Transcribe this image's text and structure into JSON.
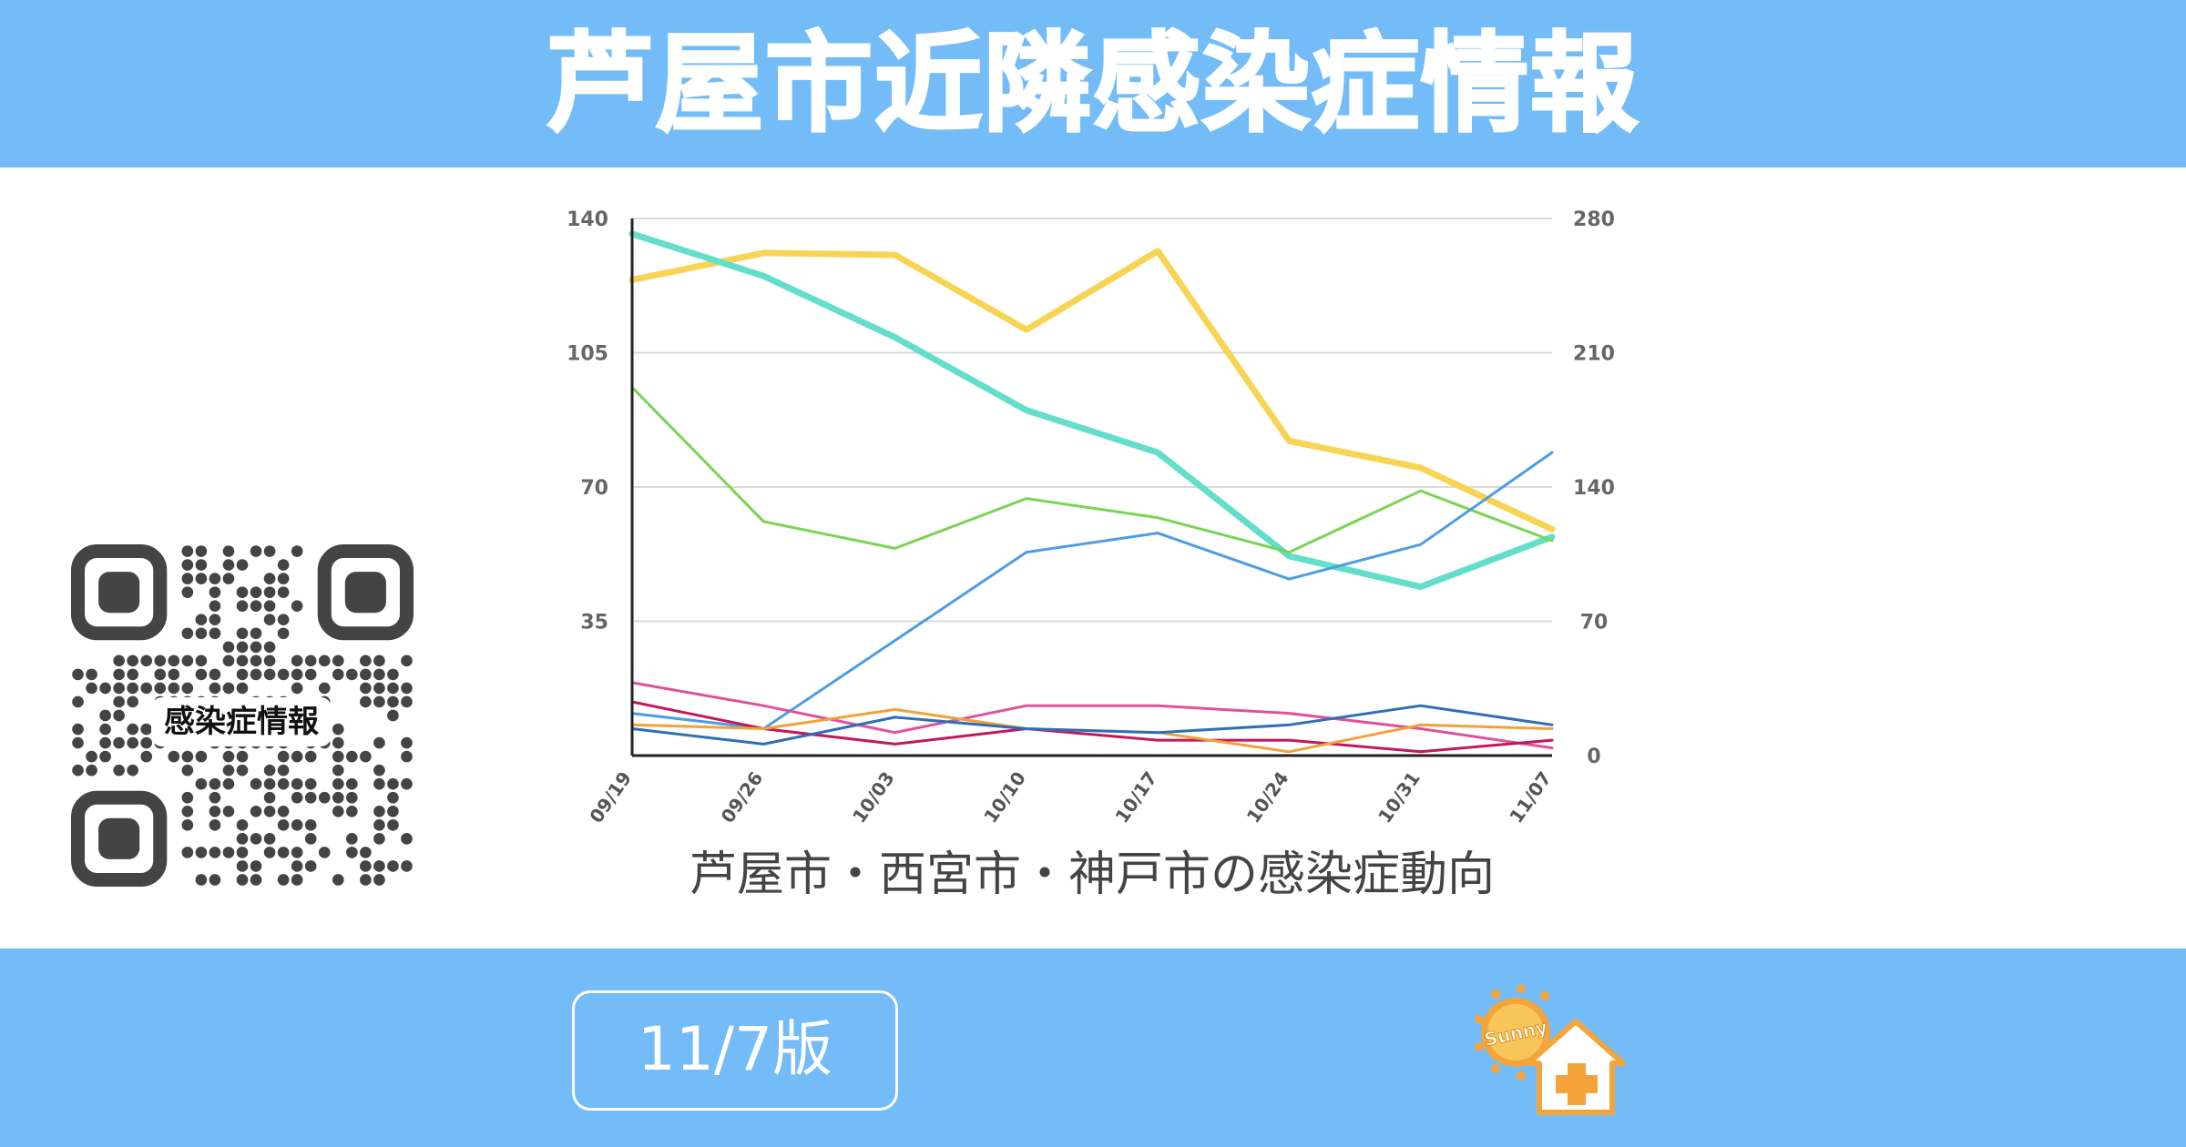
{
  "header": {
    "title": "芦屋市近隣感染症情報"
  },
  "chart_data": {
    "type": "line",
    "caption": "芦屋市・西宮市・神戸市の感染症動向",
    "categories": [
      "09/19",
      "09/26",
      "10/03",
      "10/10",
      "10/17",
      "10/24",
      "10/31",
      "11/07"
    ],
    "y_left": {
      "ticks": [
        "140",
        "105",
        "70",
        "35"
      ],
      "range": [
        0,
        140
      ]
    },
    "y_right": {
      "ticks": [
        "280",
        "210",
        "140",
        "70",
        "0"
      ],
      "range": [
        0,
        280
      ]
    },
    "grid": true,
    "series": [
      {
        "axis": "right",
        "color": "#f7d454",
        "width": 7,
        "values": [
          248,
          262,
          261,
          222,
          263,
          164,
          150,
          118
        ]
      },
      {
        "axis": "right",
        "color": "#63dec9",
        "width": 7,
        "values": [
          272,
          250,
          218,
          180,
          158,
          104,
          88,
          114
        ]
      },
      {
        "axis": "left",
        "color": "#7ad454",
        "width": 3,
        "values": [
          96,
          61,
          54,
          67,
          62,
          53,
          69,
          56
        ]
      },
      {
        "axis": "left",
        "color": "#4d9de6",
        "width": 3,
        "values": [
          11,
          7,
          30,
          53,
          58,
          46,
          55,
          79
        ]
      },
      {
        "axis": "left",
        "color": "#e0509c",
        "width": 3,
        "values": [
          19,
          13,
          6,
          13,
          13,
          11,
          7,
          2
        ]
      },
      {
        "axis": "left",
        "color": "#c2185b",
        "width": 3,
        "values": [
          14,
          7,
          3,
          7,
          4,
          4,
          1,
          4
        ]
      },
      {
        "axis": "left",
        "color": "#f0a23a",
        "width": 3,
        "values": [
          8,
          7,
          12,
          7,
          6,
          1,
          8,
          7
        ]
      },
      {
        "axis": "left",
        "color": "#2f6fb5",
        "width": 3,
        "values": [
          7,
          3,
          10,
          7,
          6,
          8,
          13,
          8
        ]
      }
    ]
  },
  "qr": {
    "label": "感染症情報"
  },
  "footer": {
    "edition": "11/7版",
    "logo_text": "Sunny"
  }
}
